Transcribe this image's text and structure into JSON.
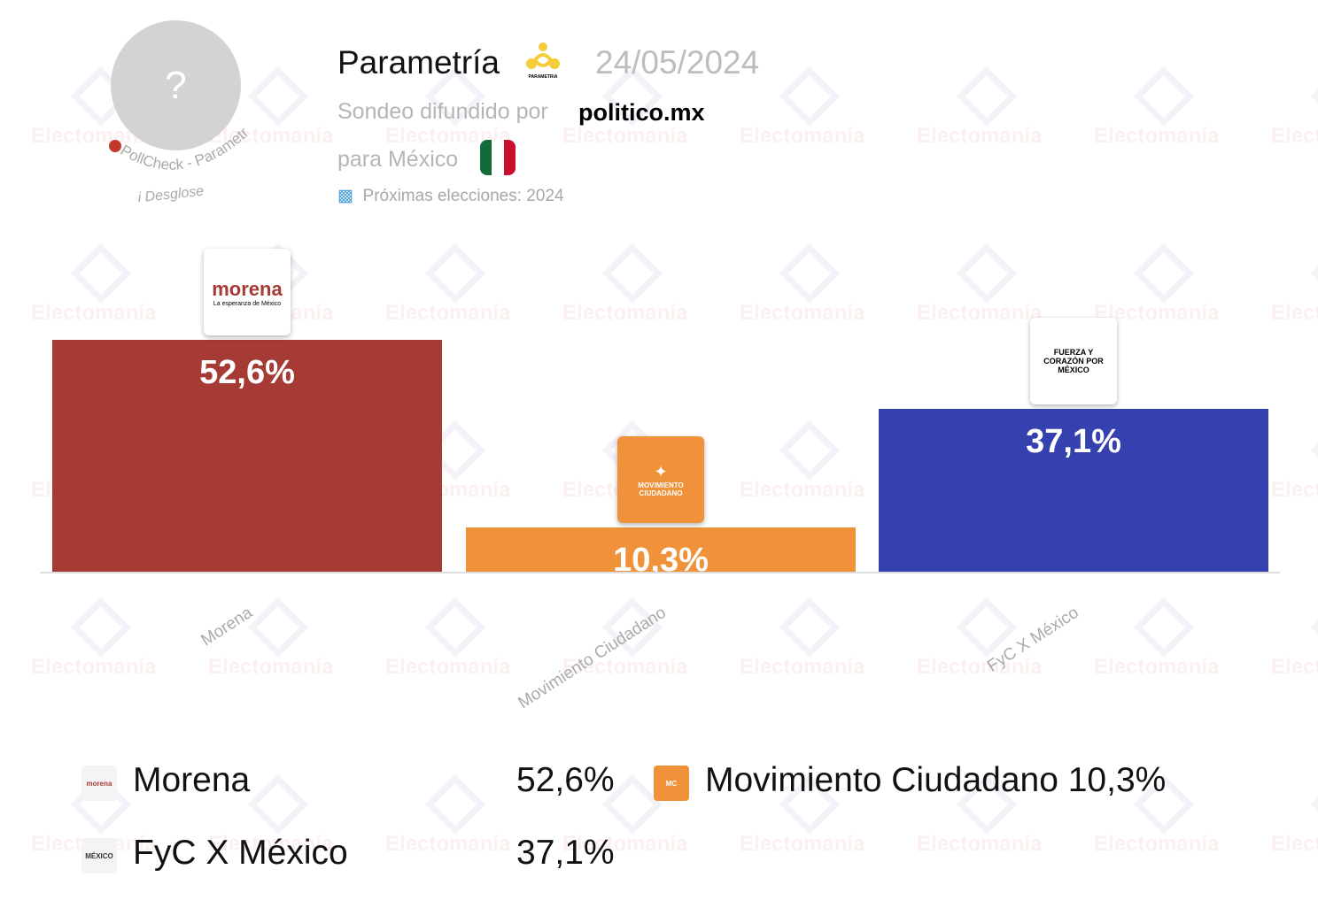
{
  "header": {
    "avatar_placeholder": "?",
    "pollcheck_label": "PollCheck - Parametría",
    "breakdown_label": "Desglose",
    "pollster": "Parametría",
    "pollster_logo_text": "PARAMETRíA",
    "date": "24/05/2024",
    "published_by_label": "Sondeo difundido por",
    "media": "politico.mx",
    "for_country_label": "para México",
    "next_elections": "Próximas elecciones: 2024"
  },
  "watermark": "Electomanía",
  "colors": {
    "morena": "#a63a35",
    "mc": "#f0923a",
    "fyc": "#3541ae"
  },
  "chart_data": {
    "type": "bar",
    "categories": [
      "Morena",
      "Movimiento Ciudadano",
      "FyC X México"
    ],
    "values": [
      52.6,
      10.3,
      37.1
    ],
    "value_labels": [
      "52,6%",
      "10,3%",
      "37,1%"
    ],
    "logo_texts": [
      "morena",
      "MOVIMIENTO CIUDADANO",
      "FUERZA Y CORAZÓN POR MÉXICO"
    ],
    "ylim": [
      0,
      52.6
    ],
    "grid": false
  },
  "legend": [
    {
      "name": "Morena",
      "value": "52,6%"
    },
    {
      "name": "Movimiento Ciudadano",
      "value": "10,3%"
    },
    {
      "name": "FyC X México",
      "value": "37,1%"
    }
  ]
}
